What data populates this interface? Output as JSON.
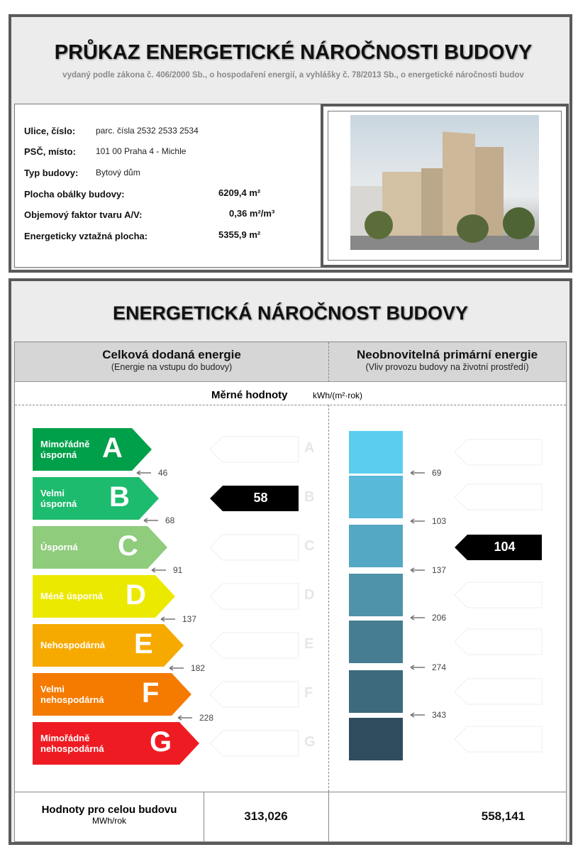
{
  "header": {
    "title": "PRŮKAZ ENERGETICKÉ NÁROČNOSTI BUDOVY",
    "subtitle": "vydaný podle zákona č. 406/2000 Sb., o hospodaření energií, a vyhlášky č. 78/2013 Sb., o energetické náročnosti budov"
  },
  "info": {
    "street_label": "Ulice, číslo:",
    "street": "parc. čísla 2532 2533 2534",
    "city_label": "PSČ, místo:",
    "city": "101 00  Praha 4  - Michle",
    "type_label": "Typ budovy:",
    "type": "Bytový dům",
    "envelope_label": "Plocha obálky budovy:",
    "envelope": "6209,4 m²",
    "factor_label": "Objemový faktor tvaru A/V:",
    "factor": "0,36 m²/m³",
    "area_label": "Energeticky vztažná plocha:",
    "area": "5355,9 m²"
  },
  "rating": {
    "title": "ENERGETICKÁ NÁROČNOST BUDOVY",
    "left_title": "Celková dodaná energie",
    "left_sub": "(Energie na vstupu do budovy)",
    "right_title": "Neobnovitelná primární energie",
    "right_sub": "(Vliv provozu budovy na životní prostředí)",
    "specific_label": "Měrné hodnoty",
    "unit": "kWh/(m²·rok)",
    "classes": [
      {
        "letter": "A",
        "label": "Mimořádně\núsporná",
        "color": "#00a04a"
      },
      {
        "letter": "B",
        "label": "Velmi\núsporná",
        "color": "#1dbb6e"
      },
      {
        "letter": "C",
        "label": "Úsporná",
        "color": "#8fcc7c"
      },
      {
        "letter": "D",
        "label": "Méně úsporná",
        "color": "#ece900"
      },
      {
        "letter": "E",
        "label": "Nehospodárná",
        "color": "#f6aa00"
      },
      {
        "letter": "F",
        "label": "Velmi\nnehospodárná",
        "color": "#f57a00"
      },
      {
        "letter": "G",
        "label": "Mimořádně\nnehospodárná",
        "color": "#ee1c22"
      }
    ],
    "left_thresholds": [
      "46",
      "68",
      "91",
      "137",
      "182",
      "228"
    ],
    "right_thresholds": [
      "69",
      "103",
      "137",
      "206",
      "274",
      "343"
    ],
    "right_colors": [
      "#5bcdef",
      "#58b9d8",
      "#55a8c4",
      "#4e93a8",
      "#467d92",
      "#3d6a7c",
      "#2f4c5c"
    ],
    "left_value": "58",
    "left_class": "B",
    "right_value": "104",
    "right_class": "C",
    "total_label": "Hodnoty pro celou budovu",
    "total_unit": "MWh/rok",
    "left_total": "313,026",
    "right_total": "558,141"
  }
}
